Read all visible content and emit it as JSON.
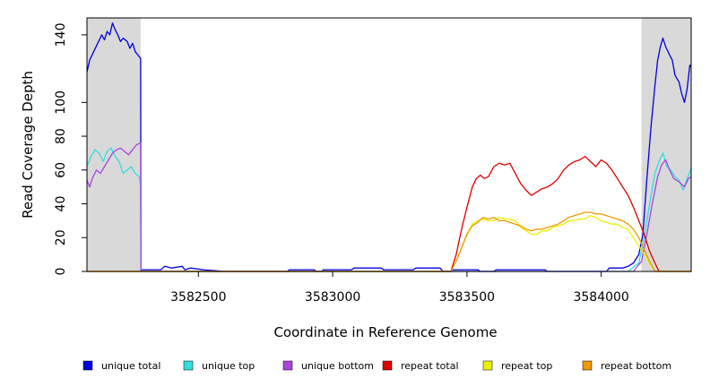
{
  "chart_data": {
    "type": "line",
    "title": "",
    "xlabel": "Coordinate in Reference Genome",
    "ylabel": "Read Coverage Depth",
    "xlim": [
      3582085,
      3584335
    ],
    "ylim": [
      0,
      150
    ],
    "x_ticks": [
      3582500,
      3583000,
      3583500,
      3584000
    ],
    "x_tick_labels": [
      "3582500",
      "3583000",
      "3583500",
      "3584000"
    ],
    "y_ticks": [
      0,
      20,
      40,
      60,
      80,
      100,
      140
    ],
    "y_tick_labels": [
      "0",
      "20",
      "40",
      "60",
      "80",
      "100",
      "140"
    ],
    "grid": false,
    "legend_position": "bottom",
    "shaded_regions": [
      {
        "x": [
          3582085,
          3582285
        ],
        "color": "#d9d9d9"
      },
      {
        "x": [
          3584150,
          3584335
        ],
        "color": "#d9d9d9"
      }
    ],
    "series": [
      {
        "name": "unique total",
        "color": "#0000dd",
        "points": [
          [
            3582085,
            118
          ],
          [
            3582095,
            125
          ],
          [
            3582110,
            130
          ],
          [
            3582125,
            135
          ],
          [
            3582140,
            140
          ],
          [
            3582150,
            137
          ],
          [
            3582160,
            142
          ],
          [
            3582170,
            140
          ],
          [
            3582180,
            147
          ],
          [
            3582190,
            143
          ],
          [
            3582200,
            140
          ],
          [
            3582210,
            136
          ],
          [
            3582220,
            138
          ],
          [
            3582235,
            136
          ],
          [
            3582245,
            132
          ],
          [
            3582255,
            135
          ],
          [
            3582265,
            130
          ],
          [
            3582275,
            128
          ],
          [
            3582285,
            126
          ],
          [
            3582286,
            1
          ],
          [
            3582360,
            1
          ],
          [
            3582375,
            3
          ],
          [
            3582400,
            2
          ],
          [
            3582440,
            3
          ],
          [
            3582450,
            1
          ],
          [
            3582470,
            2
          ],
          [
            3582520,
            1
          ],
          [
            3582600,
            0
          ],
          [
            3582830,
            0
          ],
          [
            3582840,
            1
          ],
          [
            3582930,
            1
          ],
          [
            3582940,
            0
          ],
          [
            3582960,
            0
          ],
          [
            3582965,
            1
          ],
          [
            3583070,
            1
          ],
          [
            3583080,
            2
          ],
          [
            3583180,
            2
          ],
          [
            3583190,
            1
          ],
          [
            3583300,
            1
          ],
          [
            3583310,
            2
          ],
          [
            3583400,
            2
          ],
          [
            3583410,
            0
          ],
          [
            3583440,
            0
          ],
          [
            3583445,
            1
          ],
          [
            3583540,
            1
          ],
          [
            3583550,
            0
          ],
          [
            3583600,
            0
          ],
          [
            3583610,
            1
          ],
          [
            3583790,
            1
          ],
          [
            3583800,
            0
          ],
          [
            3584020,
            0
          ],
          [
            3584030,
            2
          ],
          [
            3584080,
            2
          ],
          [
            3584100,
            3
          ],
          [
            3584120,
            5
          ],
          [
            3584140,
            10
          ],
          [
            3584155,
            22
          ],
          [
            3584170,
            55
          ],
          [
            3584185,
            85
          ],
          [
            3584200,
            110
          ],
          [
            3584210,
            125
          ],
          [
            3584220,
            133
          ],
          [
            3584230,
            138
          ],
          [
            3584240,
            133
          ],
          [
            3584255,
            128
          ],
          [
            3584265,
            125
          ],
          [
            3584275,
            116
          ],
          [
            3584290,
            112
          ],
          [
            3584300,
            105
          ],
          [
            3584310,
            100
          ],
          [
            3584320,
            108
          ],
          [
            3584330,
            122
          ],
          [
            3584335,
            121
          ]
        ]
      },
      {
        "name": "unique top",
        "color": "#33dddd",
        "points": [
          [
            3582085,
            62
          ],
          [
            3582100,
            68
          ],
          [
            3582115,
            72
          ],
          [
            3582130,
            70
          ],
          [
            3582145,
            65
          ],
          [
            3582160,
            71
          ],
          [
            3582175,
            73
          ],
          [
            3582190,
            68
          ],
          [
            3582205,
            65
          ],
          [
            3582220,
            58
          ],
          [
            3582235,
            60
          ],
          [
            3582250,
            62
          ],
          [
            3582265,
            58
          ],
          [
            3582280,
            56
          ],
          [
            3582285,
            50
          ],
          [
            3582286,
            0
          ],
          [
            3584100,
            0
          ],
          [
            3584140,
            5
          ],
          [
            3584160,
            20
          ],
          [
            3584180,
            40
          ],
          [
            3584200,
            58
          ],
          [
            3584215,
            65
          ],
          [
            3584230,
            70
          ],
          [
            3584245,
            62
          ],
          [
            3584260,
            60
          ],
          [
            3584275,
            56
          ],
          [
            3584290,
            54
          ],
          [
            3584305,
            48
          ],
          [
            3584320,
            55
          ],
          [
            3584335,
            61
          ]
        ]
      },
      {
        "name": "unique bottom",
        "color": "#aa44dd",
        "points": [
          [
            3582085,
            54
          ],
          [
            3582095,
            50
          ],
          [
            3582105,
            55
          ],
          [
            3582120,
            60
          ],
          [
            3582135,
            58
          ],
          [
            3582150,
            62
          ],
          [
            3582165,
            66
          ],
          [
            3582180,
            70
          ],
          [
            3582195,
            72
          ],
          [
            3582210,
            73
          ],
          [
            3582225,
            71
          ],
          [
            3582240,
            69
          ],
          [
            3582255,
            72
          ],
          [
            3582270,
            75
          ],
          [
            3582285,
            76
          ],
          [
            3582286,
            0
          ],
          [
            3584120,
            0
          ],
          [
            3584150,
            6
          ],
          [
            3584170,
            22
          ],
          [
            3584190,
            40
          ],
          [
            3584210,
            56
          ],
          [
            3584225,
            63
          ],
          [
            3584240,
            66
          ],
          [
            3584255,
            60
          ],
          [
            3584270,
            55
          ],
          [
            3584290,
            53
          ],
          [
            3584310,
            50
          ],
          [
            3584325,
            55
          ],
          [
            3584335,
            56
          ]
        ]
      },
      {
        "name": "repeat total",
        "color": "#dd0000",
        "points": [
          [
            3582085,
            0
          ],
          [
            3583440,
            0
          ],
          [
            3583460,
            10
          ],
          [
            3583480,
            25
          ],
          [
            3583500,
            38
          ],
          [
            3583520,
            50
          ],
          [
            3583535,
            55
          ],
          [
            3583550,
            57
          ],
          [
            3583565,
            55
          ],
          [
            3583580,
            56
          ],
          [
            3583600,
            62
          ],
          [
            3583620,
            64
          ],
          [
            3583640,
            63
          ],
          [
            3583660,
            64
          ],
          [
            3583680,
            58
          ],
          [
            3583700,
            52
          ],
          [
            3583720,
            48
          ],
          [
            3583740,
            45
          ],
          [
            3583760,
            47
          ],
          [
            3583780,
            49
          ],
          [
            3583800,
            50
          ],
          [
            3583820,
            52
          ],
          [
            3583840,
            55
          ],
          [
            3583860,
            60
          ],
          [
            3583880,
            63
          ],
          [
            3583900,
            65
          ],
          [
            3583920,
            66
          ],
          [
            3583940,
            68
          ],
          [
            3583960,
            65
          ],
          [
            3583980,
            62
          ],
          [
            3584000,
            66
          ],
          [
            3584020,
            64
          ],
          [
            3584040,
            60
          ],
          [
            3584060,
            55
          ],
          [
            3584080,
            50
          ],
          [
            3584100,
            45
          ],
          [
            3584120,
            38
          ],
          [
            3584140,
            30
          ],
          [
            3584160,
            22
          ],
          [
            3584180,
            12
          ],
          [
            3584200,
            5
          ],
          [
            3584215,
            0
          ],
          [
            3584335,
            0
          ]
        ]
      },
      {
        "name": "repeat top",
        "color": "#eeee00",
        "points": [
          [
            3582085,
            0
          ],
          [
            3583440,
            0
          ],
          [
            3583460,
            6
          ],
          [
            3583480,
            14
          ],
          [
            3583500,
            22
          ],
          [
            3583520,
            28
          ],
          [
            3583540,
            30
          ],
          [
            3583560,
            31
          ],
          [
            3583580,
            30
          ],
          [
            3583600,
            30
          ],
          [
            3583620,
            32
          ],
          [
            3583640,
            31
          ],
          [
            3583660,
            31
          ],
          [
            3583680,
            30
          ],
          [
            3583700,
            26
          ],
          [
            3583720,
            24
          ],
          [
            3583740,
            22
          ],
          [
            3583760,
            22
          ],
          [
            3583780,
            24
          ],
          [
            3583800,
            24
          ],
          [
            3583820,
            26
          ],
          [
            3583840,
            27
          ],
          [
            3583860,
            28
          ],
          [
            3583880,
            30
          ],
          [
            3583900,
            30
          ],
          [
            3583920,
            31
          ],
          [
            3583940,
            31
          ],
          [
            3583960,
            33
          ],
          [
            3583980,
            32
          ],
          [
            3584000,
            30
          ],
          [
            3584020,
            29
          ],
          [
            3584040,
            28
          ],
          [
            3584060,
            28
          ],
          [
            3584080,
            26
          ],
          [
            3584100,
            25
          ],
          [
            3584120,
            20
          ],
          [
            3584140,
            15
          ],
          [
            3584160,
            10
          ],
          [
            3584180,
            5
          ],
          [
            3584200,
            0
          ],
          [
            3584335,
            0
          ]
        ]
      },
      {
        "name": "repeat bottom",
        "color": "#ee9900",
        "points": [
          [
            3582085,
            0
          ],
          [
            3583440,
            0
          ],
          [
            3583460,
            6
          ],
          [
            3583480,
            14
          ],
          [
            3583500,
            22
          ],
          [
            3583520,
            27
          ],
          [
            3583540,
            29
          ],
          [
            3583560,
            32
          ],
          [
            3583580,
            31
          ],
          [
            3583600,
            32
          ],
          [
            3583620,
            30
          ],
          [
            3583640,
            30
          ],
          [
            3583660,
            29
          ],
          [
            3583680,
            28
          ],
          [
            3583700,
            27
          ],
          [
            3583720,
            25
          ],
          [
            3583740,
            24
          ],
          [
            3583760,
            25
          ],
          [
            3583780,
            25
          ],
          [
            3583800,
            26
          ],
          [
            3583820,
            27
          ],
          [
            3583840,
            28
          ],
          [
            3583860,
            30
          ],
          [
            3583880,
            32
          ],
          [
            3583900,
            33
          ],
          [
            3583920,
            34
          ],
          [
            3583940,
            35
          ],
          [
            3583960,
            35
          ],
          [
            3583980,
            34
          ],
          [
            3584000,
            34
          ],
          [
            3584020,
            33
          ],
          [
            3584040,
            32
          ],
          [
            3584060,
            31
          ],
          [
            3584080,
            30
          ],
          [
            3584100,
            28
          ],
          [
            3584120,
            25
          ],
          [
            3584140,
            20
          ],
          [
            3584160,
            13
          ],
          [
            3584180,
            6
          ],
          [
            3584200,
            0
          ],
          [
            3584335,
            0
          ]
        ]
      }
    ]
  }
}
